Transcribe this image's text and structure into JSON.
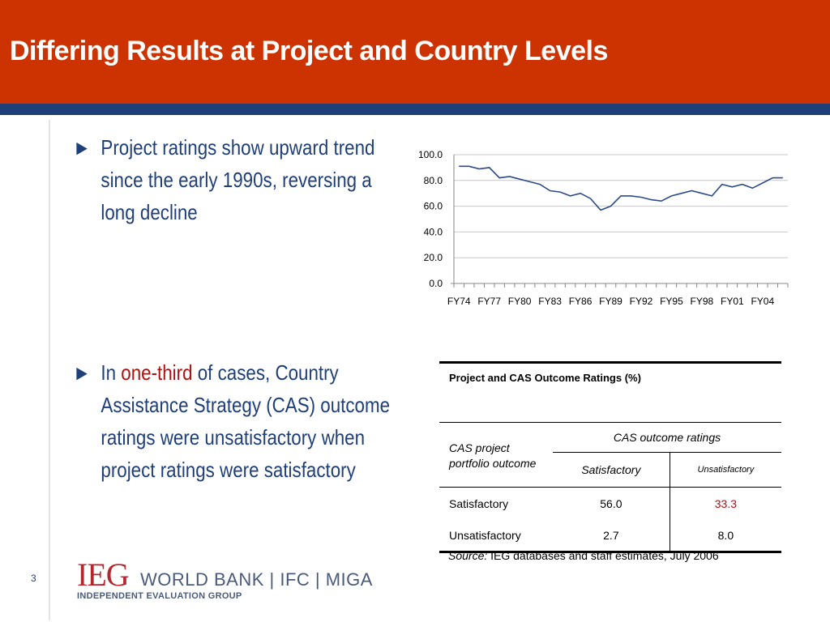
{
  "slide": {
    "title": "Differing Results at Project and Country Levels",
    "page_number": "3",
    "colors": {
      "header": "#cc3300",
      "header_rule": "#1f3f7a",
      "text": "#1f3f7a",
      "highlight": "#b01010",
      "line": "#2c4a8c"
    }
  },
  "bullets": [
    {
      "arrow": "►",
      "text": "Project ratings show upward trend since the early 1990s, reversing a long decline"
    },
    {
      "arrow": "►",
      "pre": "In ",
      "highlight": "one-third",
      "post": " of cases, Country Assistance Strategy (CAS) outcome ratings were unsatisfactory when project ratings were satisfactory"
    }
  ],
  "chart_data": {
    "type": "line",
    "title": "",
    "xlabel": "",
    "ylabel": "",
    "ylim": [
      0,
      100
    ],
    "yticks": [
      "0.0",
      "20.0",
      "40.0",
      "60.0",
      "80.0",
      "100.0"
    ],
    "xtick_labels": [
      "FY74",
      "FY77",
      "FY80",
      "FY83",
      "FY86",
      "FY89",
      "FY92",
      "FY95",
      "FY98",
      "FY01",
      "FY04"
    ],
    "grid": true,
    "legend": "none",
    "series": [
      {
        "x": [
          "FY74",
          "FY75",
          "FY76",
          "FY77",
          "FY78",
          "FY79",
          "FY80",
          "FY81",
          "FY82",
          "FY83",
          "FY84",
          "FY85",
          "FY86",
          "FY87",
          "FY88",
          "FY89",
          "FY90",
          "FY91",
          "FY92",
          "FY93",
          "FY94",
          "FY95",
          "FY96",
          "FY97",
          "FY98",
          "FY99",
          "FY00",
          "FY01",
          "FY02",
          "FY03",
          "FY04",
          "FY05",
          "FY06"
        ],
        "values": [
          91,
          91,
          89,
          90,
          82,
          83,
          81,
          79,
          77,
          72,
          71,
          68,
          70,
          66,
          57,
          60,
          68,
          68,
          67,
          65,
          64,
          68,
          70,
          72,
          70,
          68,
          77,
          75,
          77,
          74,
          78,
          82,
          82
        ]
      }
    ]
  },
  "table": {
    "title": "Project and CAS Outcome Ratings (%)",
    "row_header": "CAS project portfolio outcome",
    "group_header": "CAS outcome ratings",
    "col_headers": [
      "Satisfactory",
      "Unsatisfactory"
    ],
    "rows": [
      {
        "label": "Satisfactory",
        "values": [
          "56.0",
          "33.3"
        ]
      },
      {
        "label": "Unsatisfactory",
        "values": [
          "2.7",
          "8.0"
        ]
      }
    ],
    "source_label": "Source:",
    "source_text": " IEG databases and staff estimates, July 2006"
  },
  "logo": {
    "ieg": "IEG",
    "orgs": "WORLD BANK  |  IFC  |  MIGA",
    "subtitle": "INDEPENDENT EVALUATION GROUP"
  }
}
